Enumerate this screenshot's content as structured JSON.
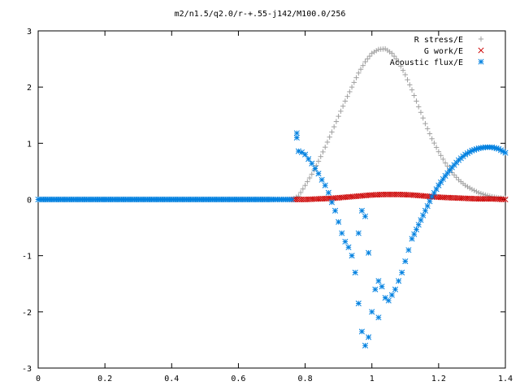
{
  "chart_data": {
    "type": "scatter",
    "title": "m2/n1.5/q2.0/r-+.55-j142/M100.0/256",
    "xlabel": "",
    "ylabel": "",
    "xlim": [
      0,
      1.4
    ],
    "ylim": [
      -3,
      3
    ],
    "x_ticks": [
      "0",
      "0.2",
      "0.4",
      "0.6",
      "0.8",
      "1",
      "1.2",
      "1.4"
    ],
    "y_ticks": [
      "3",
      "2",
      "1",
      "0",
      "-1",
      "-2",
      "-3"
    ],
    "legend_position": "top-right",
    "grid": false,
    "series": [
      {
        "name": "R stress/E",
        "marker": "plus",
        "color": "#a0a0a0",
        "points": [
          [
            0.0,
            0.0
          ],
          [
            0.1,
            0.0
          ],
          [
            0.2,
            0.0
          ],
          [
            0.3,
            0.0
          ],
          [
            0.4,
            0.0
          ],
          [
            0.5,
            0.0
          ],
          [
            0.6,
            0.0
          ],
          [
            0.7,
            0.0
          ],
          [
            0.76,
            0.0
          ],
          [
            0.78,
            0.06
          ],
          [
            0.8,
            0.25
          ],
          [
            0.82,
            0.45
          ],
          [
            0.84,
            0.68
          ],
          [
            0.86,
            0.93
          ],
          [
            0.88,
            1.2
          ],
          [
            0.9,
            1.48
          ],
          [
            0.92,
            1.75
          ],
          [
            0.94,
            2.0
          ],
          [
            0.96,
            2.25
          ],
          [
            0.98,
            2.45
          ],
          [
            1.0,
            2.6
          ],
          [
            1.02,
            2.67
          ],
          [
            1.04,
            2.68
          ],
          [
            1.06,
            2.6
          ],
          [
            1.08,
            2.45
          ],
          [
            1.1,
            2.22
          ],
          [
            1.12,
            1.95
          ],
          [
            1.14,
            1.65
          ],
          [
            1.16,
            1.35
          ],
          [
            1.18,
            1.08
          ],
          [
            1.2,
            0.85
          ],
          [
            1.22,
            0.65
          ],
          [
            1.24,
            0.48
          ],
          [
            1.26,
            0.35
          ],
          [
            1.28,
            0.25
          ],
          [
            1.3,
            0.18
          ],
          [
            1.32,
            0.12
          ],
          [
            1.34,
            0.08
          ],
          [
            1.36,
            0.05
          ],
          [
            1.38,
            0.03
          ],
          [
            1.4,
            0.02
          ]
        ]
      },
      {
        "name": "G work/E",
        "marker": "cross",
        "color": "#cc0000",
        "points": [
          [
            0.76,
            0.0
          ],
          [
            0.8,
            0.0
          ],
          [
            0.84,
            0.01
          ],
          [
            0.88,
            0.02
          ],
          [
            0.92,
            0.04
          ],
          [
            0.96,
            0.06
          ],
          [
            1.0,
            0.08
          ],
          [
            1.04,
            0.09
          ],
          [
            1.08,
            0.09
          ],
          [
            1.12,
            0.08
          ],
          [
            1.16,
            0.06
          ],
          [
            1.2,
            0.04
          ],
          [
            1.24,
            0.03
          ],
          [
            1.28,
            0.02
          ],
          [
            1.32,
            0.01
          ],
          [
            1.36,
            0.01
          ],
          [
            1.4,
            0.0
          ]
        ]
      },
      {
        "name": "Acoustic flux/E",
        "marker": "star",
        "color": "#0080e0",
        "points": [
          [
            0.0,
            0.0
          ],
          [
            0.1,
            0.0
          ],
          [
            0.2,
            0.0
          ],
          [
            0.3,
            0.0
          ],
          [
            0.4,
            0.0
          ],
          [
            0.5,
            0.0
          ],
          [
            0.6,
            0.0
          ],
          [
            0.7,
            0.0
          ],
          [
            0.76,
            0.0
          ],
          [
            0.775,
            1.18
          ],
          [
            0.775,
            1.1
          ],
          [
            0.78,
            0.86
          ],
          [
            0.79,
            0.84
          ],
          [
            0.8,
            0.8
          ],
          [
            0.81,
            0.72
          ],
          [
            0.82,
            0.64
          ],
          [
            0.83,
            0.55
          ],
          [
            0.84,
            0.46
          ],
          [
            0.85,
            0.35
          ],
          [
            0.86,
            0.25
          ],
          [
            0.87,
            0.12
          ],
          [
            0.88,
            -0.05
          ],
          [
            0.89,
            -0.2
          ],
          [
            0.9,
            -0.4
          ],
          [
            0.91,
            -0.6
          ],
          [
            0.92,
            -0.75
          ],
          [
            0.93,
            -0.85
          ],
          [
            0.94,
            -1.0
          ],
          [
            0.95,
            -1.3
          ],
          [
            0.96,
            -0.6
          ],
          [
            0.96,
            -1.85
          ],
          [
            0.97,
            -2.35
          ],
          [
            0.97,
            -0.2
          ],
          [
            0.98,
            -2.6
          ],
          [
            0.98,
            -0.3
          ],
          [
            0.99,
            -2.45
          ],
          [
            0.99,
            -0.95
          ],
          [
            1.0,
            -2.0
          ],
          [
            1.01,
            -1.6
          ],
          [
            1.02,
            -1.45
          ],
          [
            1.02,
            -2.1
          ],
          [
            1.03,
            -1.55
          ],
          [
            1.04,
            -1.75
          ],
          [
            1.05,
            -1.8
          ],
          [
            1.06,
            -1.7
          ],
          [
            1.07,
            -1.6
          ],
          [
            1.08,
            -1.45
          ],
          [
            1.09,
            -1.3
          ],
          [
            1.1,
            -1.1
          ],
          [
            1.11,
            -0.9
          ],
          [
            1.12,
            -0.7
          ],
          [
            1.14,
            -0.45
          ],
          [
            1.16,
            -0.2
          ],
          [
            1.18,
            0.05
          ],
          [
            1.2,
            0.25
          ],
          [
            1.22,
            0.42
          ],
          [
            1.24,
            0.57
          ],
          [
            1.26,
            0.7
          ],
          [
            1.28,
            0.8
          ],
          [
            1.3,
            0.87
          ],
          [
            1.32,
            0.91
          ],
          [
            1.34,
            0.93
          ],
          [
            1.36,
            0.93
          ],
          [
            1.38,
            0.9
          ],
          [
            1.4,
            0.83
          ]
        ]
      }
    ]
  }
}
